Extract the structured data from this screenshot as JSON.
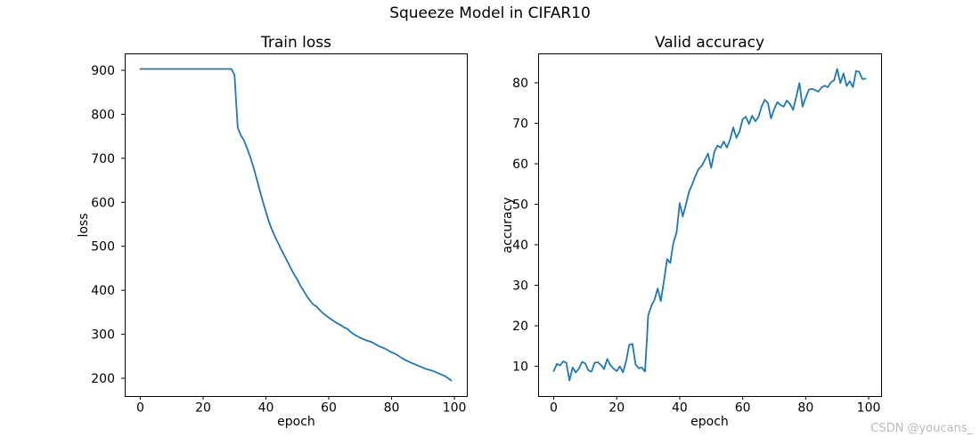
{
  "figure": {
    "suptitle": "Squeeze Model in CIFAR10",
    "watermark": "CSDN @youcans_",
    "line_color": "#1f77b4",
    "spine_color": "#000000",
    "text_color": "#000000",
    "watermark_color": "#b8b8bf",
    "background_color": "#ffffff"
  },
  "chart_data": [
    {
      "type": "line",
      "title": "Train loss",
      "xlabel": "epoch",
      "ylabel": "loss",
      "legend": "none",
      "grid": false,
      "x_ticks": [
        0,
        20,
        40,
        60,
        80,
        100
      ],
      "y_ticks": [
        200,
        300,
        400,
        500,
        600,
        700,
        800,
        900
      ],
      "xlim": [
        -4.95,
        103.95
      ],
      "ylim": [
        159.6,
        938.4
      ],
      "x": [
        0,
        1,
        2,
        3,
        4,
        5,
        6,
        7,
        8,
        9,
        10,
        11,
        12,
        13,
        14,
        15,
        16,
        17,
        18,
        19,
        20,
        21,
        22,
        23,
        24,
        25,
        26,
        27,
        28,
        29,
        30,
        31,
        32,
        33,
        34,
        35,
        36,
        37,
        38,
        39,
        40,
        41,
        42,
        43,
        44,
        45,
        46,
        47,
        48,
        49,
        50,
        51,
        52,
        53,
        54,
        55,
        56,
        57,
        58,
        59,
        60,
        61,
        62,
        63,
        64,
        65,
        66,
        67,
        68,
        69,
        70,
        71,
        72,
        73,
        74,
        75,
        76,
        77,
        78,
        79,
        80,
        81,
        82,
        83,
        84,
        85,
        86,
        87,
        88,
        89,
        90,
        91,
        92,
        93,
        94,
        95,
        96,
        97,
        98,
        99
      ],
      "y": [
        903,
        903,
        903,
        903,
        903,
        903,
        903,
        903,
        903,
        903,
        903,
        903,
        903,
        903,
        903,
        903,
        903,
        903,
        903,
        903,
        903,
        903,
        903,
        903,
        903,
        903,
        903,
        903,
        903,
        903,
        890,
        770,
        752,
        741,
        723,
        703,
        680,
        655,
        628,
        602,
        578,
        555,
        536,
        520,
        506,
        491,
        477,
        463,
        449,
        436,
        424,
        410,
        399,
        387,
        377,
        368,
        364,
        356,
        349,
        343,
        338,
        333,
        328,
        324,
        320,
        315,
        312,
        305,
        300,
        296,
        292,
        289,
        286,
        284,
        281,
        277,
        273,
        270,
        267,
        263,
        259,
        256,
        252,
        247,
        243,
        239,
        236,
        233,
        230,
        227,
        224,
        221,
        219,
        217,
        214,
        211,
        208,
        205,
        200,
        195
      ]
    },
    {
      "type": "line",
      "title": "Valid accuracy",
      "xlabel": "epoch",
      "ylabel": "accuracy",
      "legend": "none",
      "grid": false,
      "x_ticks": [
        0,
        20,
        40,
        60,
        80,
        100
      ],
      "y_ticks": [
        10,
        20,
        30,
        40,
        50,
        60,
        70,
        80
      ],
      "xlim": [
        -4.95,
        103.95
      ],
      "ylim": [
        2.65,
        87.25
      ],
      "x": [
        0,
        1,
        2,
        3,
        4,
        5,
        6,
        7,
        8,
        9,
        10,
        11,
        12,
        13,
        14,
        15,
        16,
        17,
        18,
        19,
        20,
        21,
        22,
        23,
        24,
        25,
        26,
        27,
        28,
        29,
        30,
        31,
        32,
        33,
        34,
        35,
        36,
        37,
        38,
        39,
        40,
        41,
        42,
        43,
        44,
        45,
        46,
        47,
        48,
        49,
        50,
        51,
        52,
        53,
        54,
        55,
        56,
        57,
        58,
        59,
        60,
        61,
        62,
        63,
        64,
        65,
        66,
        67,
        68,
        69,
        70,
        71,
        72,
        73,
        74,
        75,
        76,
        77,
        78,
        79,
        80,
        81,
        82,
        83,
        84,
        85,
        86,
        87,
        88,
        89,
        90,
        91,
        92,
        93,
        94,
        95,
        96,
        97,
        98,
        99
      ],
      "y": [
        8.8,
        10.6,
        10.2,
        11.2,
        10.9,
        6.5,
        9.7,
        8.5,
        9.4,
        11.1,
        10.7,
        9.0,
        8.7,
        10.9,
        11.0,
        10.3,
        9.3,
        11.8,
        10.3,
        9.4,
        8.8,
        10.0,
        8.5,
        11.3,
        15.3,
        15.5,
        10.4,
        9.5,
        9.7,
        8.7,
        22.6,
        24.9,
        26.4,
        29.2,
        26.1,
        31.0,
        36.5,
        35.5,
        40.5,
        43.0,
        50.3,
        47.0,
        50.0,
        53.2,
        55.0,
        57.0,
        58.7,
        59.5,
        61.0,
        62.5,
        59.0,
        63.0,
        64.5,
        64.0,
        65.5,
        64.0,
        66.0,
        69.0,
        66.4,
        68.0,
        71.0,
        71.6,
        69.8,
        71.9,
        70.5,
        71.5,
        74.1,
        75.8,
        75.0,
        71.2,
        73.5,
        75.2,
        74.5,
        74.1,
        75.6,
        74.8,
        73.3,
        76.5,
        79.9,
        74.1,
        76.3,
        78.3,
        78.5,
        78.2,
        77.8,
        78.8,
        79.3,
        78.9,
        80.1,
        80.6,
        83.4,
        79.9,
        82.3,
        79.2,
        80.4,
        78.9,
        82.9,
        82.7,
        80.9,
        81.0
      ]
    }
  ]
}
